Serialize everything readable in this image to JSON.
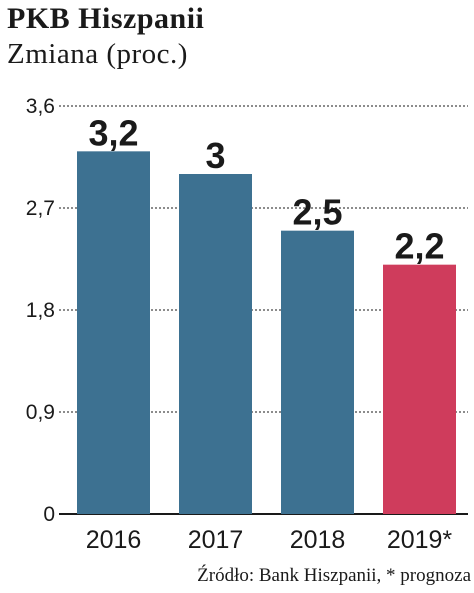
{
  "header": {
    "title": "PKB Hiszpanii",
    "subtitle": "Zmiana (proc.)"
  },
  "source": "Źródło: Bank Hiszpanii, * prognoza",
  "colors": {
    "bar_default": "#3d7191",
    "bar_forecast": "#cf3c5c",
    "grid": "#1a1a1a"
  },
  "chart_data": {
    "type": "bar",
    "title": "PKB Hiszpanii",
    "subtitle": "Zmiana (proc.)",
    "categories": [
      "2016",
      "2017",
      "2018",
      "2019*"
    ],
    "values": [
      3.2,
      3.0,
      2.5,
      2.2
    ],
    "value_labels": [
      "3,2",
      "3",
      "2,5",
      "2,2"
    ],
    "forecast": [
      false,
      false,
      false,
      true
    ],
    "ylim": [
      0,
      3.6
    ],
    "yticks": [
      0,
      0.9,
      1.8,
      2.7,
      3.6
    ],
    "ytick_labels": [
      "0",
      "0,9",
      "1,8",
      "2,7",
      "3,6"
    ],
    "grid": true,
    "xlabel": "",
    "ylabel": ""
  }
}
